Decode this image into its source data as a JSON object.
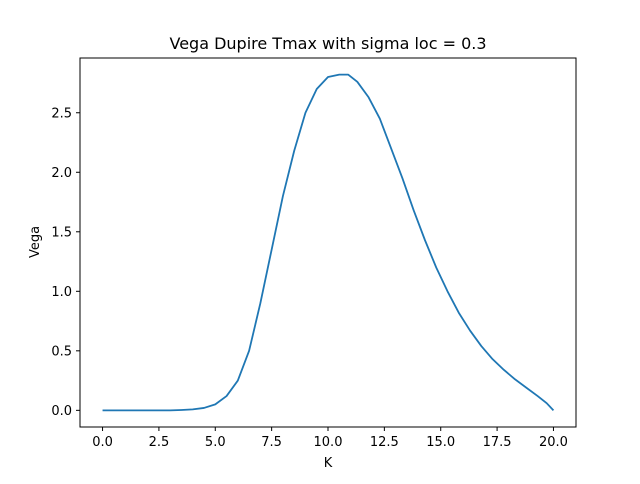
{
  "chart_data": {
    "type": "line",
    "title": "Vega Dupire Tmax with sigma loc = 0.3",
    "xlabel": "K",
    "ylabel": "Vega",
    "xlim": [
      -1.0,
      21.0
    ],
    "ylim": [
      -0.14,
      2.96
    ],
    "grid": false,
    "x_ticks": [
      0.0,
      2.5,
      5.0,
      7.5,
      10.0,
      12.5,
      15.0,
      17.5,
      20.0
    ],
    "x_tick_labels": [
      "0.0",
      "2.5",
      "5.0",
      "7.5",
      "10.0",
      "12.5",
      "15.0",
      "17.5",
      "20.0"
    ],
    "y_ticks": [
      0.0,
      0.5,
      1.0,
      1.5,
      2.0,
      2.5
    ],
    "y_tick_labels": [
      "0.0",
      "0.5",
      "1.0",
      "1.5",
      "2.0",
      "2.5"
    ],
    "series": [
      {
        "color": "#1f77b4",
        "x": [
          0,
          1,
          2,
          3,
          3.5,
          4,
          4.5,
          5,
          5.5,
          6,
          6.5,
          7,
          7.5,
          8,
          8.5,
          9,
          9.5,
          10,
          10.5,
          10.9,
          11.3,
          11.8,
          12.3,
          12.8,
          13.3,
          13.8,
          14.3,
          14.8,
          15.3,
          15.8,
          16.3,
          16.8,
          17.3,
          17.8,
          18.3,
          18.8,
          19.3,
          19.7,
          20
        ],
        "y": [
          0,
          0,
          0,
          0,
          0.003,
          0.008,
          0.02,
          0.05,
          0.12,
          0.25,
          0.5,
          0.9,
          1.35,
          1.8,
          2.18,
          2.5,
          2.7,
          2.8,
          2.82,
          2.82,
          2.76,
          2.63,
          2.45,
          2.2,
          1.95,
          1.68,
          1.43,
          1.2,
          1.0,
          0.82,
          0.67,
          0.54,
          0.43,
          0.34,
          0.26,
          0.19,
          0.12,
          0.06,
          0.0
        ]
      }
    ]
  }
}
